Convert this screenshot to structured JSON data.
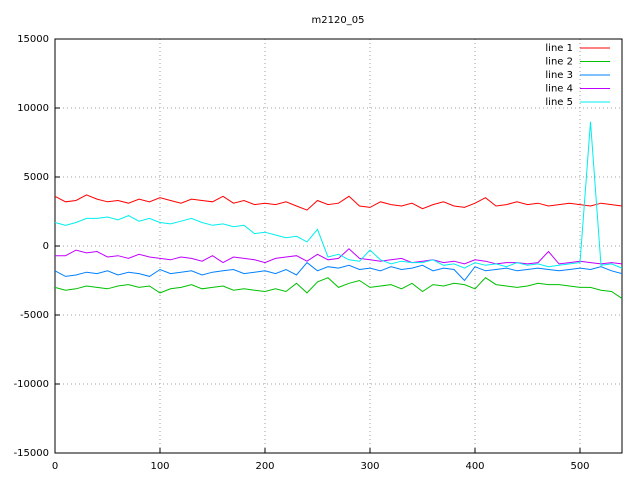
{
  "chart_data": {
    "type": "line",
    "title": "m2120_05",
    "x": [
      0,
      10,
      20,
      30,
      40,
      50,
      60,
      70,
      80,
      90,
      100,
      110,
      120,
      130,
      140,
      150,
      160,
      170,
      180,
      190,
      200,
      210,
      220,
      230,
      240,
      250,
      260,
      270,
      280,
      290,
      300,
      310,
      320,
      330,
      340,
      350,
      360,
      370,
      380,
      390,
      400,
      410,
      420,
      430,
      440,
      450,
      460,
      470,
      480,
      490,
      500,
      510,
      520,
      530,
      540
    ],
    "xlim": [
      0,
      540
    ],
    "xticks": [
      0,
      100,
      200,
      300,
      400,
      500
    ],
    "ylim": [
      -15000,
      15000
    ],
    "yticks": [
      -15000,
      -10000,
      -5000,
      0,
      5000,
      10000,
      15000
    ],
    "grid": true,
    "legend": "top-right",
    "series": [
      {
        "name": "line 1",
        "color": "#ff0000",
        "values": [
          3600,
          3200,
          3300,
          3700,
          3400,
          3200,
          3300,
          3100,
          3400,
          3200,
          3500,
          3300,
          3100,
          3400,
          3300,
          3200,
          3600,
          3100,
          3300,
          3000,
          3100,
          3000,
          3200,
          2900,
          2600,
          3300,
          3000,
          3100,
          3600,
          2900,
          2800,
          3200,
          3000,
          2900,
          3100,
          2700,
          3000,
          3200,
          2900,
          2800,
          3100,
          3500,
          2900,
          3000,
          3200,
          3000,
          3100,
          2900,
          3000,
          3100,
          3000,
          2900,
          3100,
          3000,
          2900
        ]
      },
      {
        "name": "line 2",
        "color": "#00c000",
        "values": [
          -3000,
          -3200,
          -3100,
          -2900,
          -3000,
          -3100,
          -2900,
          -2800,
          -3000,
          -2900,
          -3400,
          -3100,
          -3000,
          -2800,
          -3100,
          -3000,
          -2900,
          -3200,
          -3100,
          -3200,
          -3300,
          -3100,
          -3300,
          -2700,
          -3400,
          -2600,
          -2300,
          -3000,
          -2700,
          -2500,
          -3000,
          -2900,
          -2800,
          -3100,
          -2700,
          -3300,
          -2800,
          -2900,
          -2700,
          -2800,
          -3100,
          -2300,
          -2800,
          -2900,
          -3000,
          -2900,
          -2700,
          -2800,
          -2800,
          -2900,
          -3000,
          -3000,
          -3200,
          -3300,
          -3800
        ]
      },
      {
        "name": "line 3",
        "color": "#0080ff",
        "values": [
          -1800,
          -2200,
          -2100,
          -1900,
          -2000,
          -1800,
          -2100,
          -1900,
          -2000,
          -2200,
          -1700,
          -2000,
          -1900,
          -1800,
          -2100,
          -1900,
          -1800,
          -1700,
          -2000,
          -1900,
          -1800,
          -2000,
          -1700,
          -2100,
          -1200,
          -1800,
          -1500,
          -1600,
          -1400,
          -1700,
          -1600,
          -1800,
          -1500,
          -1700,
          -1600,
          -1400,
          -1800,
          -1600,
          -1700,
          -2500,
          -1500,
          -1800,
          -1700,
          -1600,
          -1800,
          -1700,
          -1600,
          -1700,
          -1800,
          -1700,
          -1600,
          -1700,
          -1500,
          -1800,
          -2000
        ]
      },
      {
        "name": "line 4",
        "color": "#c000ff",
        "values": [
          -700,
          -700,
          -300,
          -500,
          -400,
          -800,
          -700,
          -900,
          -600,
          -800,
          -900,
          -1000,
          -800,
          -900,
          -1100,
          -700,
          -1200,
          -800,
          -900,
          -1000,
          -1200,
          -900,
          -800,
          -700,
          -1100,
          -600,
          -1000,
          -900,
          -200,
          -900,
          -1000,
          -1100,
          -1000,
          -900,
          -1200,
          -1100,
          -1000,
          -1200,
          -1100,
          -1300,
          -1000,
          -1100,
          -1300,
          -1200,
          -1200,
          -1300,
          -1200,
          -400,
          -1300,
          -1200,
          -1100,
          -1200,
          -1300,
          -1200,
          -1300
        ]
      },
      {
        "name": "line 5",
        "color": "#00eeee",
        "values": [
          1700,
          1500,
          1700,
          2000,
          2000,
          2100,
          1900,
          2200,
          1800,
          2000,
          1700,
          1600,
          1800,
          2000,
          1700,
          1500,
          1600,
          1400,
          1500,
          900,
          1000,
          800,
          600,
          700,
          300,
          1200,
          -800,
          -600,
          -1000,
          -1100,
          -300,
          -1000,
          -1300,
          -1100,
          -1200,
          -1200,
          -1000,
          -1400,
          -1300,
          -1600,
          -1200,
          -1400,
          -1300,
          -1500,
          -1200,
          -1400,
          -1300,
          -1500,
          -1400,
          -1300,
          -1200,
          9000,
          -1400,
          -1300,
          -1600
        ]
      }
    ]
  }
}
